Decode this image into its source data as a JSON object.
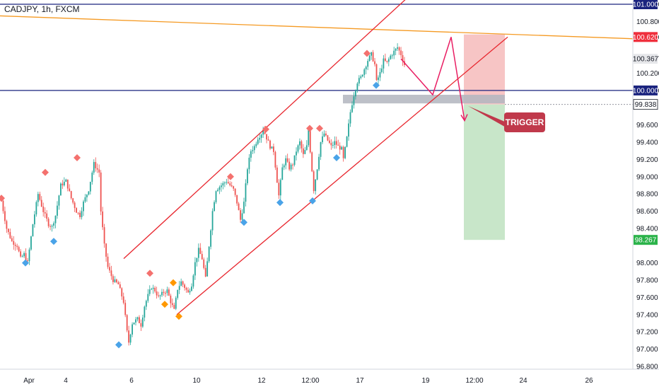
{
  "symbol_title": "CADJPY, 1h, FXCM",
  "colors": {
    "up": "#26a69a",
    "down": "#ef5350",
    "channel": "#e8262e",
    "resistance_orange": "#f59a23",
    "level_navy": "#1a237e",
    "projection": "#e91e63",
    "zone_gray": "#b2b5be",
    "stop_zone": "#f7c5c5",
    "target_zone": "#c8e6c9",
    "trigger_box": "#c0394b",
    "marker_red": "#f4716e",
    "marker_blue": "#4aa3e8",
    "marker_orange": "#ff9800",
    "price_tag_red": "#ef2f3c",
    "price_tag_green": "#2bb34a",
    "price_tag_gray": "#e6e7ea"
  },
  "trigger_label": "TRIGGER",
  "chart_data": {
    "type": "candlestick",
    "title": "CADJPY, 1h, FXCM",
    "ylim": [
      96.75,
      101.05
    ],
    "y_ticks": [
      "101.000",
      "100.800",
      "100.620",
      "100.367",
      "100.200",
      "100.000",
      "99.838",
      "99.600",
      "99.400",
      "99.200",
      "99.000",
      "98.800",
      "98.600",
      "98.400",
      "98.267",
      "98.000",
      "97.800",
      "97.600",
      "97.400",
      "97.200",
      "97.000",
      "96.800"
    ],
    "x_ticks": [
      "Apr",
      "4",
      "6",
      "10",
      "12",
      "12:00",
      "17",
      "19",
      "12:00",
      "24",
      "26"
    ],
    "price_tags": [
      {
        "label": "101.000",
        "value": 101.0,
        "style": "navy"
      },
      {
        "label": "100.620",
        "value": 100.62,
        "style": "red"
      },
      {
        "label": "100.367",
        "value": 100.367,
        "style": "gray"
      },
      {
        "label": "100.000",
        "value": 100.0,
        "style": "navy"
      },
      {
        "label": "99.838",
        "value": 99.838,
        "style": "dark"
      },
      {
        "label": "98.267",
        "value": 98.267,
        "style": "green"
      }
    ],
    "path_keypoints": [
      [
        0,
        98.72
      ],
      [
        3,
        98.4
      ],
      [
        6,
        98.25
      ],
      [
        9,
        98.2
      ],
      [
        11,
        98.05
      ],
      [
        13,
        98.1
      ],
      [
        15,
        98.0
      ],
      [
        18,
        98.45
      ],
      [
        21,
        98.8
      ],
      [
        24,
        98.6
      ],
      [
        27,
        98.45
      ],
      [
        29,
        98.42
      ],
      [
        31,
        98.55
      ],
      [
        34,
        98.9
      ],
      [
        37,
        98.95
      ],
      [
        40,
        98.75
      ],
      [
        43,
        98.6
      ],
      [
        45,
        98.55
      ],
      [
        47,
        98.7
      ],
      [
        50,
        98.85
      ],
      [
        53,
        99.15
      ],
      [
        56,
        99.05
      ],
      [
        57,
        98.6
      ],
      [
        59,
        98.2
      ],
      [
        61,
        97.95
      ],
      [
        64,
        97.8
      ],
      [
        67,
        97.75
      ],
      [
        70,
        97.55
      ],
      [
        72,
        97.2
      ],
      [
        73,
        97.08
      ],
      [
        75,
        97.3
      ],
      [
        78,
        97.35
      ],
      [
        80,
        97.28
      ],
      [
        82,
        97.5
      ],
      [
        84,
        97.62
      ],
      [
        86,
        97.72
      ],
      [
        88,
        97.68
      ],
      [
        90,
        97.6
      ],
      [
        93,
        97.66
      ],
      [
        95,
        97.68
      ],
      [
        97,
        97.55
      ],
      [
        99,
        97.45
      ],
      [
        101,
        97.7
      ],
      [
        103,
        97.78
      ],
      [
        105,
        97.72
      ],
      [
        107,
        97.65
      ],
      [
        109,
        97.75
      ],
      [
        111,
        98.0
      ],
      [
        113,
        98.15
      ],
      [
        115,
        98.05
      ],
      [
        117,
        97.82
      ],
      [
        119,
        98.2
      ],
      [
        121,
        98.6
      ],
      [
        123,
        98.85
      ],
      [
        126,
        98.9
      ],
      [
        129,
        98.95
      ],
      [
        131,
        98.9
      ],
      [
        133,
        98.85
      ],
      [
        135,
        98.7
      ],
      [
        137,
        98.5
      ],
      [
        139,
        98.7
      ],
      [
        141,
        99.1
      ],
      [
        143,
        99.3
      ],
      [
        145,
        99.35
      ],
      [
        147,
        99.45
      ],
      [
        149,
        99.5
      ],
      [
        150,
        99.55
      ],
      [
        152,
        99.45
      ],
      [
        154,
        99.35
      ],
      [
        156,
        99.3
      ],
      [
        158,
        98.95
      ],
      [
        159,
        98.78
      ],
      [
        161,
        99.1
      ],
      [
        163,
        99.2
      ],
      [
        165,
        99.1
      ],
      [
        167,
        99.15
      ],
      [
        169,
        99.3
      ],
      [
        171,
        99.4
      ],
      [
        173,
        99.25
      ],
      [
        175,
        99.35
      ],
      [
        176,
        99.55
      ],
      [
        177,
        99.3
      ],
      [
        179,
        98.85
      ],
      [
        181,
        99.1
      ],
      [
        183,
        99.4
      ],
      [
        185,
        99.5
      ],
      [
        187,
        99.42
      ],
      [
        189,
        99.35
      ],
      [
        191,
        99.4
      ],
      [
        193,
        99.35
      ],
      [
        195,
        99.32
      ],
      [
        196,
        99.2
      ],
      [
        198,
        99.45
      ],
      [
        200,
        99.75
      ],
      [
        202,
        99.95
      ],
      [
        204,
        100.1
      ],
      [
        206,
        100.15
      ],
      [
        208,
        100.25
      ],
      [
        210,
        100.35
      ],
      [
        212,
        100.42
      ],
      [
        214,
        100.3
      ],
      [
        215,
        100.1
      ],
      [
        217,
        100.2
      ],
      [
        219,
        100.35
      ],
      [
        221,
        100.32
      ],
      [
        223,
        100.4
      ],
      [
        225,
        100.45
      ],
      [
        227,
        100.5
      ],
      [
        229,
        100.42
      ],
      [
        231,
        100.3
      ]
    ],
    "channel": {
      "upper": [
        [
          175,
          98.05
        ],
        [
          582,
          101.12
        ]
      ],
      "lower": [
        [
          250,
          97.4
        ],
        [
          718,
          100.62
        ]
      ]
    },
    "resistance_line": {
      "from": [
        0,
        100.865
      ],
      "to": [
        885,
        100.6
      ],
      "label": "100.620"
    },
    "levels": [
      {
        "value": 101.0,
        "label": "101.000"
      },
      {
        "value": 100.0,
        "label": "100.000"
      }
    ],
    "entry_zone": {
      "top": 99.95,
      "bottom": 99.85
    },
    "stop_zone": {
      "top": 100.65,
      "bottom": 99.838
    },
    "target_zone": {
      "top": 99.838,
      "bottom": 98.267
    },
    "projection_path": [
      [
        567,
        100.367
      ],
      [
        612,
        99.95
      ],
      [
        638,
        100.62
      ],
      [
        657,
        99.65
      ]
    ],
    "markers": {
      "red_top": [
        [
          2,
          98.75
        ],
        [
          64,
          99.05
        ],
        [
          109,
          99.22
        ],
        [
          212,
          97.88
        ],
        [
          326,
          99.0
        ],
        [
          376,
          99.55
        ],
        [
          438,
          99.56
        ],
        [
          452,
          99.56
        ],
        [
          519,
          100.43
        ]
      ],
      "blue_bottom": [
        [
          36,
          98.0
        ],
        [
          76,
          98.25
        ],
        [
          168,
          97.05
        ],
        [
          345,
          98.47
        ],
        [
          396,
          98.7
        ],
        [
          442,
          98.72
        ],
        [
          476,
          99.22
        ],
        [
          532,
          100.06
        ]
      ],
      "orange_bottom": [
        [
          233,
          97.52
        ],
        [
          253,
          97.38
        ]
      ],
      "orange_top": [
        [
          245,
          97.77
        ]
      ]
    },
    "trigger_anchor": [
      662,
      99.82
    ]
  }
}
